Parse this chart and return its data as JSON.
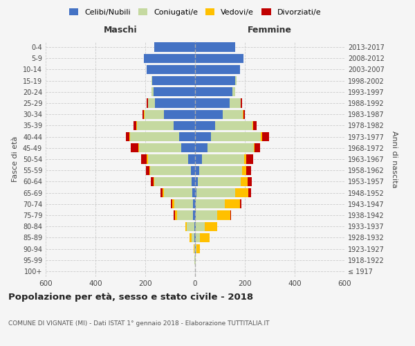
{
  "age_groups": [
    "100+",
    "95-99",
    "90-94",
    "85-89",
    "80-84",
    "75-79",
    "70-74",
    "65-69",
    "60-64",
    "55-59",
    "50-54",
    "45-49",
    "40-44",
    "35-39",
    "30-34",
    "25-29",
    "20-24",
    "15-19",
    "10-14",
    "5-9",
    "0-4"
  ],
  "birth_years": [
    "≤ 1917",
    "1918-1922",
    "1923-1927",
    "1928-1932",
    "1933-1937",
    "1938-1942",
    "1943-1947",
    "1948-1952",
    "1953-1957",
    "1958-1962",
    "1963-1967",
    "1968-1972",
    "1973-1977",
    "1978-1982",
    "1983-1987",
    "1988-1992",
    "1993-1997",
    "1998-2002",
    "2003-2007",
    "2008-2012",
    "2013-2017"
  ],
  "maschi_celibi": [
    0,
    0,
    0,
    2,
    4,
    8,
    8,
    10,
    15,
    18,
    28,
    55,
    65,
    85,
    125,
    160,
    168,
    172,
    195,
    205,
    165
  ],
  "maschi_coniugati": [
    0,
    2,
    4,
    12,
    28,
    65,
    75,
    115,
    148,
    162,
    162,
    170,
    195,
    148,
    78,
    28,
    8,
    4,
    0,
    0,
    0
  ],
  "maschi_vedovi": [
    0,
    0,
    2,
    8,
    8,
    8,
    8,
    5,
    4,
    4,
    4,
    4,
    4,
    4,
    2,
    2,
    0,
    0,
    0,
    0,
    0
  ],
  "maschi_divorziati": [
    0,
    0,
    0,
    0,
    0,
    4,
    5,
    8,
    10,
    14,
    22,
    28,
    14,
    10,
    6,
    4,
    0,
    0,
    0,
    0,
    0
  ],
  "femmine_celibi": [
    0,
    0,
    2,
    2,
    2,
    4,
    4,
    6,
    12,
    18,
    28,
    50,
    65,
    80,
    110,
    140,
    150,
    162,
    180,
    195,
    160
  ],
  "femmine_coniugati": [
    0,
    2,
    4,
    18,
    38,
    85,
    115,
    155,
    170,
    170,
    170,
    185,
    200,
    150,
    82,
    42,
    12,
    4,
    0,
    0,
    0
  ],
  "femmine_vedovi": [
    0,
    2,
    14,
    38,
    48,
    52,
    62,
    52,
    28,
    18,
    8,
    4,
    4,
    4,
    2,
    2,
    0,
    0,
    0,
    0,
    0
  ],
  "femmine_divorziati": [
    0,
    0,
    0,
    0,
    0,
    4,
    6,
    12,
    18,
    18,
    28,
    22,
    28,
    12,
    6,
    4,
    0,
    0,
    0,
    0,
    0
  ],
  "color_celibi": "#4472c4",
  "color_coniugati": "#c5d9a0",
  "color_vedovi": "#ffc000",
  "color_divorziati": "#c00000",
  "title": "Popolazione per età, sesso e stato civile - 2018",
  "subtitle": "COMUNE DI VIGNATE (MI) - Dati ISTAT 1° gennaio 2018 - Elaborazione TUTTITALIA.IT",
  "ylabel_left": "Fasce di età",
  "ylabel_right": "Anni di nascita",
  "xlabel_maschi": "Maschi",
  "xlabel_femmine": "Femmine",
  "xlim": 600,
  "legend_labels": [
    "Celibi/Nubili",
    "Coniugati/e",
    "Vedovi/e",
    "Divorziati/e"
  ],
  "bg_color": "#f5f5f5",
  "grid_color": "#cccccc"
}
